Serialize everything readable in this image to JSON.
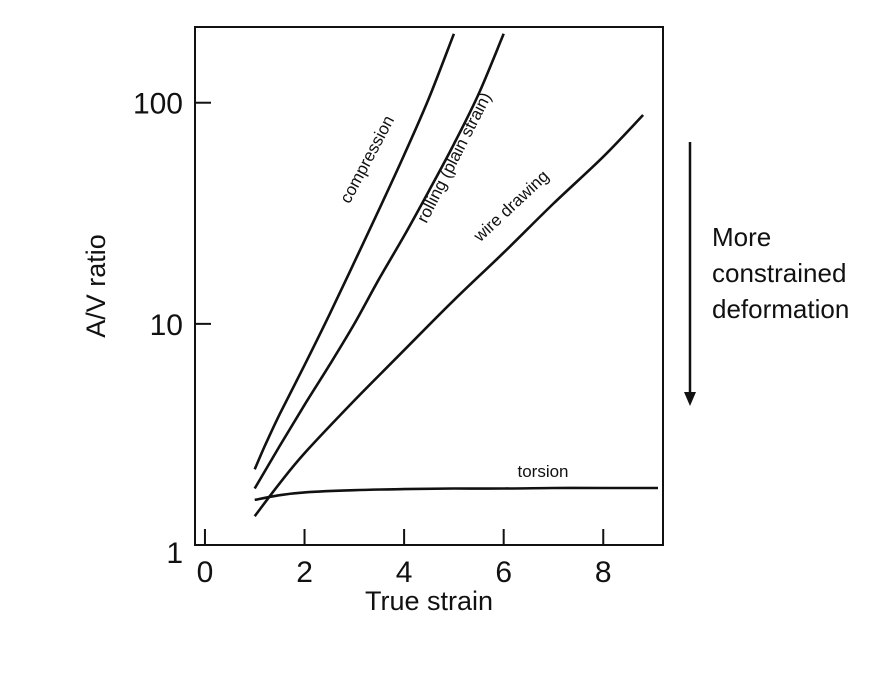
{
  "chart_data": {
    "type": "line",
    "title": "",
    "xlabel": "True strain",
    "ylabel": "A/V ratio",
    "x_scale": "linear",
    "y_scale": "log",
    "xlim": [
      -0.2,
      9.2
    ],
    "ylim": [
      1,
      220
    ],
    "x_ticks": [
      0,
      2,
      4,
      6,
      8
    ],
    "y_ticks": [
      1,
      10,
      100
    ],
    "x_tick_labels": [
      "0",
      "2",
      "4",
      "6",
      "8"
    ],
    "y_tick_labels": [
      "1",
      "10",
      "100"
    ],
    "grid": false,
    "series": [
      {
        "name": "compression",
        "x": [
          1.0,
          1.2,
          1.5,
          2.0,
          2.5,
          3.0,
          3.5,
          4.0,
          4.5,
          5.0
        ],
        "y": [
          2.2,
          2.8,
          3.9,
          6.5,
          11,
          19,
          33,
          58,
          105,
          205
        ]
      },
      {
        "name": "rolling (plain strain)",
        "x": [
          1.0,
          1.5,
          2.0,
          2.5,
          3.0,
          3.5,
          4.0,
          4.5,
          5.0,
          5.5,
          6.0
        ],
        "y": [
          1.8,
          2.8,
          4.3,
          6.5,
          10,
          16,
          25,
          40,
          65,
          110,
          205
        ]
      },
      {
        "name": "wire drawing",
        "x": [
          1.0,
          1.5,
          2.0,
          3.0,
          4.0,
          5.0,
          6.0,
          7.0,
          8.0,
          8.8
        ],
        "y": [
          1.35,
          1.9,
          2.6,
          4.5,
          7.6,
          12.8,
          21,
          35,
          57,
          88
        ]
      },
      {
        "name": "torsion",
        "x": [
          1.0,
          1.5,
          2.0,
          3.0,
          4.0,
          5.0,
          6.0,
          7.0,
          8.0,
          9.1
        ],
        "y": [
          1.6,
          1.68,
          1.73,
          1.77,
          1.79,
          1.8,
          1.8,
          1.81,
          1.81,
          1.81
        ]
      }
    ],
    "annotation": {
      "lines": [
        "More",
        "constrained",
        "deformation"
      ],
      "arrow_direction": "down"
    }
  }
}
